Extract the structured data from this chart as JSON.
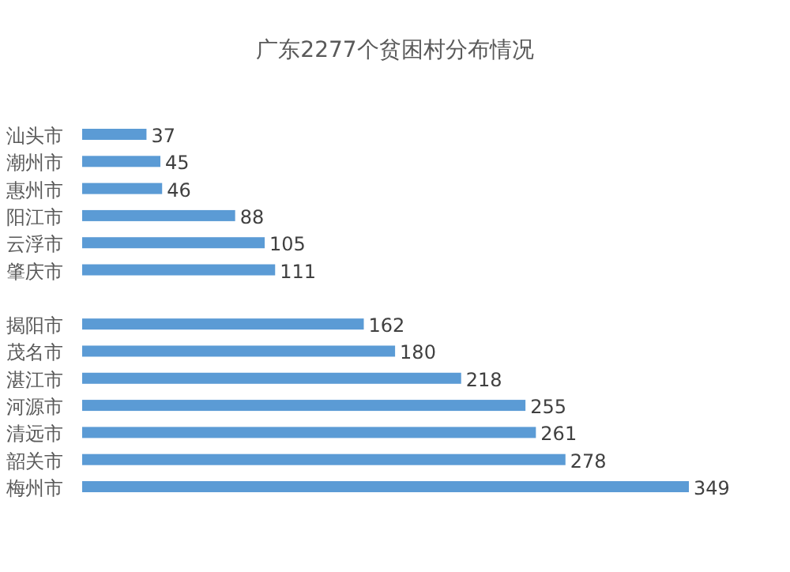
{
  "chart_data": {
    "type": "bar",
    "orientation": "horizontal",
    "title": "广东2277个贫困村分布情况",
    "categories": [
      "汕头市",
      "潮州市",
      "惠州市",
      "阳江市",
      "云浮市",
      "肇庆市",
      null,
      "揭阳市",
      "茂名市",
      "湛江市",
      "河源市",
      "清远市",
      "韶关市",
      "梅州市"
    ],
    "values": [
      37,
      45,
      46,
      88,
      105,
      111,
      null,
      162,
      180,
      218,
      255,
      261,
      278,
      349
    ],
    "color": "#5b9bd5",
    "data_labels": true
  }
}
